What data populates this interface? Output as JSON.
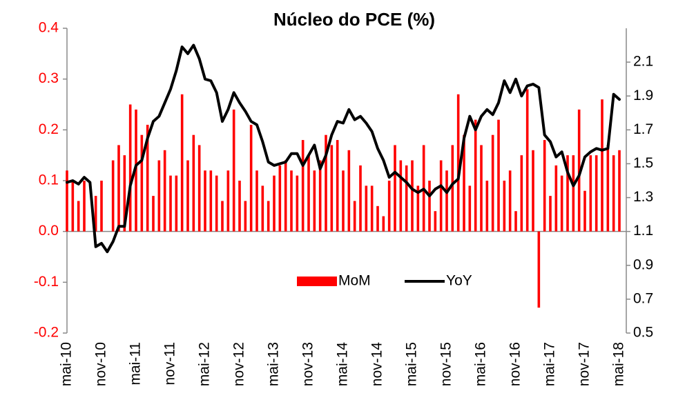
{
  "chart_data": {
    "type": "combo",
    "title": "Núcleo do PCE (%)",
    "categories": [
      "mai-10",
      null,
      null,
      null,
      null,
      null,
      "nov-10",
      null,
      null,
      null,
      null,
      null,
      "mai-11",
      null,
      null,
      null,
      null,
      null,
      "nov-11",
      null,
      null,
      null,
      null,
      null,
      "mai-12",
      null,
      null,
      null,
      null,
      null,
      "nov-12",
      null,
      null,
      null,
      null,
      null,
      "mai-13",
      null,
      null,
      null,
      null,
      null,
      "nov-13",
      null,
      null,
      null,
      null,
      null,
      "mai-14",
      null,
      null,
      null,
      null,
      null,
      "nov-14",
      null,
      null,
      null,
      null,
      null,
      "mai-15",
      null,
      null,
      null,
      null,
      null,
      "nov-15",
      null,
      null,
      null,
      null,
      null,
      "mai-16",
      null,
      null,
      null,
      null,
      null,
      "nov-16",
      null,
      null,
      null,
      null,
      null,
      "mai-17",
      null,
      null,
      null,
      null,
      null,
      "nov-17",
      null,
      null,
      null,
      null,
      null,
      "mai-18"
    ],
    "series": [
      {
        "name": "MoM",
        "type": "bar",
        "color": "#ff0000",
        "values": [
          0.12,
          0.1,
          0.06,
          0.1,
          0.0,
          0.07,
          0.1,
          0.0,
          0.14,
          0.17,
          0.15,
          0.25,
          0.24,
          0.19,
          0.21,
          0.07,
          0.14,
          0.16,
          0.11,
          0.11,
          0.27,
          0.14,
          0.19,
          0.17,
          0.12,
          0.12,
          0.11,
          0.06,
          0.12,
          0.24,
          0.1,
          0.06,
          0.21,
          0.12,
          0.09,
          0.06,
          0.11,
          0.13,
          0.14,
          0.12,
          0.11,
          0.18,
          0.15,
          0.12,
          0.14,
          0.19,
          0.17,
          0.18,
          0.12,
          0.16,
          0.06,
          0.13,
          0.09,
          0.09,
          0.05,
          0.03,
          0.1,
          0.17,
          0.14,
          0.13,
          0.14,
          0.09,
          0.17,
          0.1,
          0.04,
          0.14,
          0.12,
          0.17,
          0.27,
          0.19,
          0.09,
          0.22,
          0.17,
          0.1,
          0.19,
          0.22,
          0.1,
          0.12,
          0.04,
          0.15,
          0.28,
          0.16,
          -0.15,
          0.18,
          0.07,
          0.13,
          0.11,
          0.15,
          0.15,
          0.24,
          0.08,
          0.15,
          0.15,
          0.26,
          0.17,
          0.15,
          0.16
        ]
      },
      {
        "name": "YoY",
        "type": "line",
        "color": "#000000",
        "axis": "y2",
        "values": [
          1.39,
          1.4,
          1.38,
          1.42,
          1.39,
          1.01,
          1.03,
          0.98,
          1.04,
          1.13,
          1.13,
          1.37,
          1.49,
          1.52,
          1.65,
          1.75,
          1.78,
          1.86,
          1.94,
          2.05,
          2.19,
          2.15,
          2.2,
          2.12,
          2.0,
          1.99,
          1.92,
          1.75,
          1.82,
          1.92,
          1.86,
          1.81,
          1.75,
          1.73,
          1.63,
          1.51,
          1.49,
          1.5,
          1.51,
          1.56,
          1.56,
          1.49,
          1.55,
          1.61,
          1.47,
          1.55,
          1.67,
          1.75,
          1.74,
          1.82,
          1.76,
          1.78,
          1.74,
          1.69,
          1.59,
          1.52,
          1.42,
          1.45,
          1.42,
          1.39,
          1.35,
          1.33,
          1.35,
          1.31,
          1.35,
          1.37,
          1.33,
          1.38,
          1.41,
          1.65,
          1.78,
          1.7,
          1.78,
          1.82,
          1.79,
          1.86,
          1.99,
          1.92,
          2.0,
          1.9,
          1.96,
          1.97,
          1.95,
          1.67,
          1.63,
          1.54,
          1.57,
          1.45,
          1.37,
          1.43,
          1.54,
          1.57,
          1.59,
          1.58,
          1.59,
          1.91,
          1.88
        ]
      }
    ],
    "ylim": [
      -0.2,
      0.4
    ],
    "yticks": [
      -0.2,
      -0.1,
      {
        "value": 0,
        "label": "0.0"
      },
      0.1,
      0.2,
      0.3,
      0.4
    ],
    "y2lim": [
      0.5,
      2.3
    ],
    "y2ticks": [
      0.5,
      0.7,
      0.9,
      1.1,
      1.3,
      1.5,
      1.7,
      1.9,
      2.1
    ],
    "legend": "lower center",
    "grid": false
  }
}
